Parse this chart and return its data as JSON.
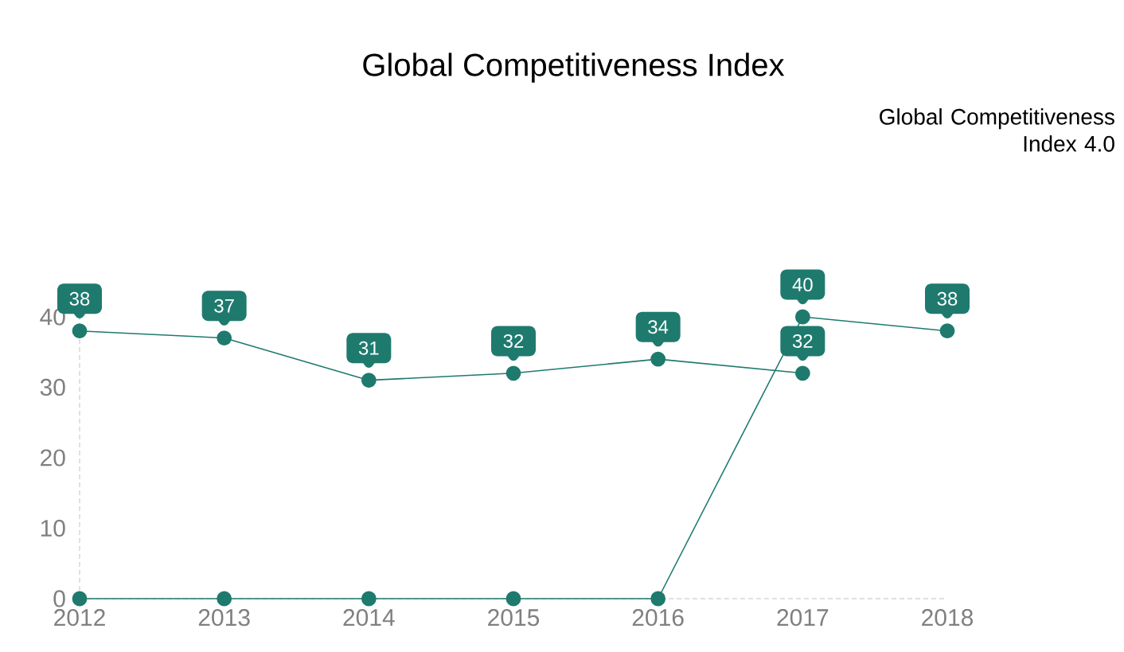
{
  "chart_data": {
    "type": "line",
    "title": "Global Competitiveness Index",
    "categories": [
      "2012",
      "2013",
      "2014",
      "2015",
      "2016",
      "2017",
      "2018"
    ],
    "series": [
      {
        "color": "#1f7a6e",
        "values": [
          38,
          37,
          31,
          32,
          34,
          32,
          null
        ],
        "value_labels": [
          "38",
          "37",
          "31",
          "32",
          "34",
          "32",
          null
        ]
      },
      {
        "name": "Global Competitiveness Index 4.0",
        "color": "#1f7a6e",
        "values": [
          0,
          0,
          0,
          0,
          0,
          40,
          38
        ],
        "value_labels": [
          null,
          null,
          null,
          null,
          null,
          "40",
          "38"
        ]
      }
    ],
    "ylim": [
      0,
      40
    ],
    "yticks": [
      0,
      10,
      20,
      30,
      40
    ],
    "marker": "circle",
    "line_style": "solid",
    "grid": false,
    "legend": false
  }
}
